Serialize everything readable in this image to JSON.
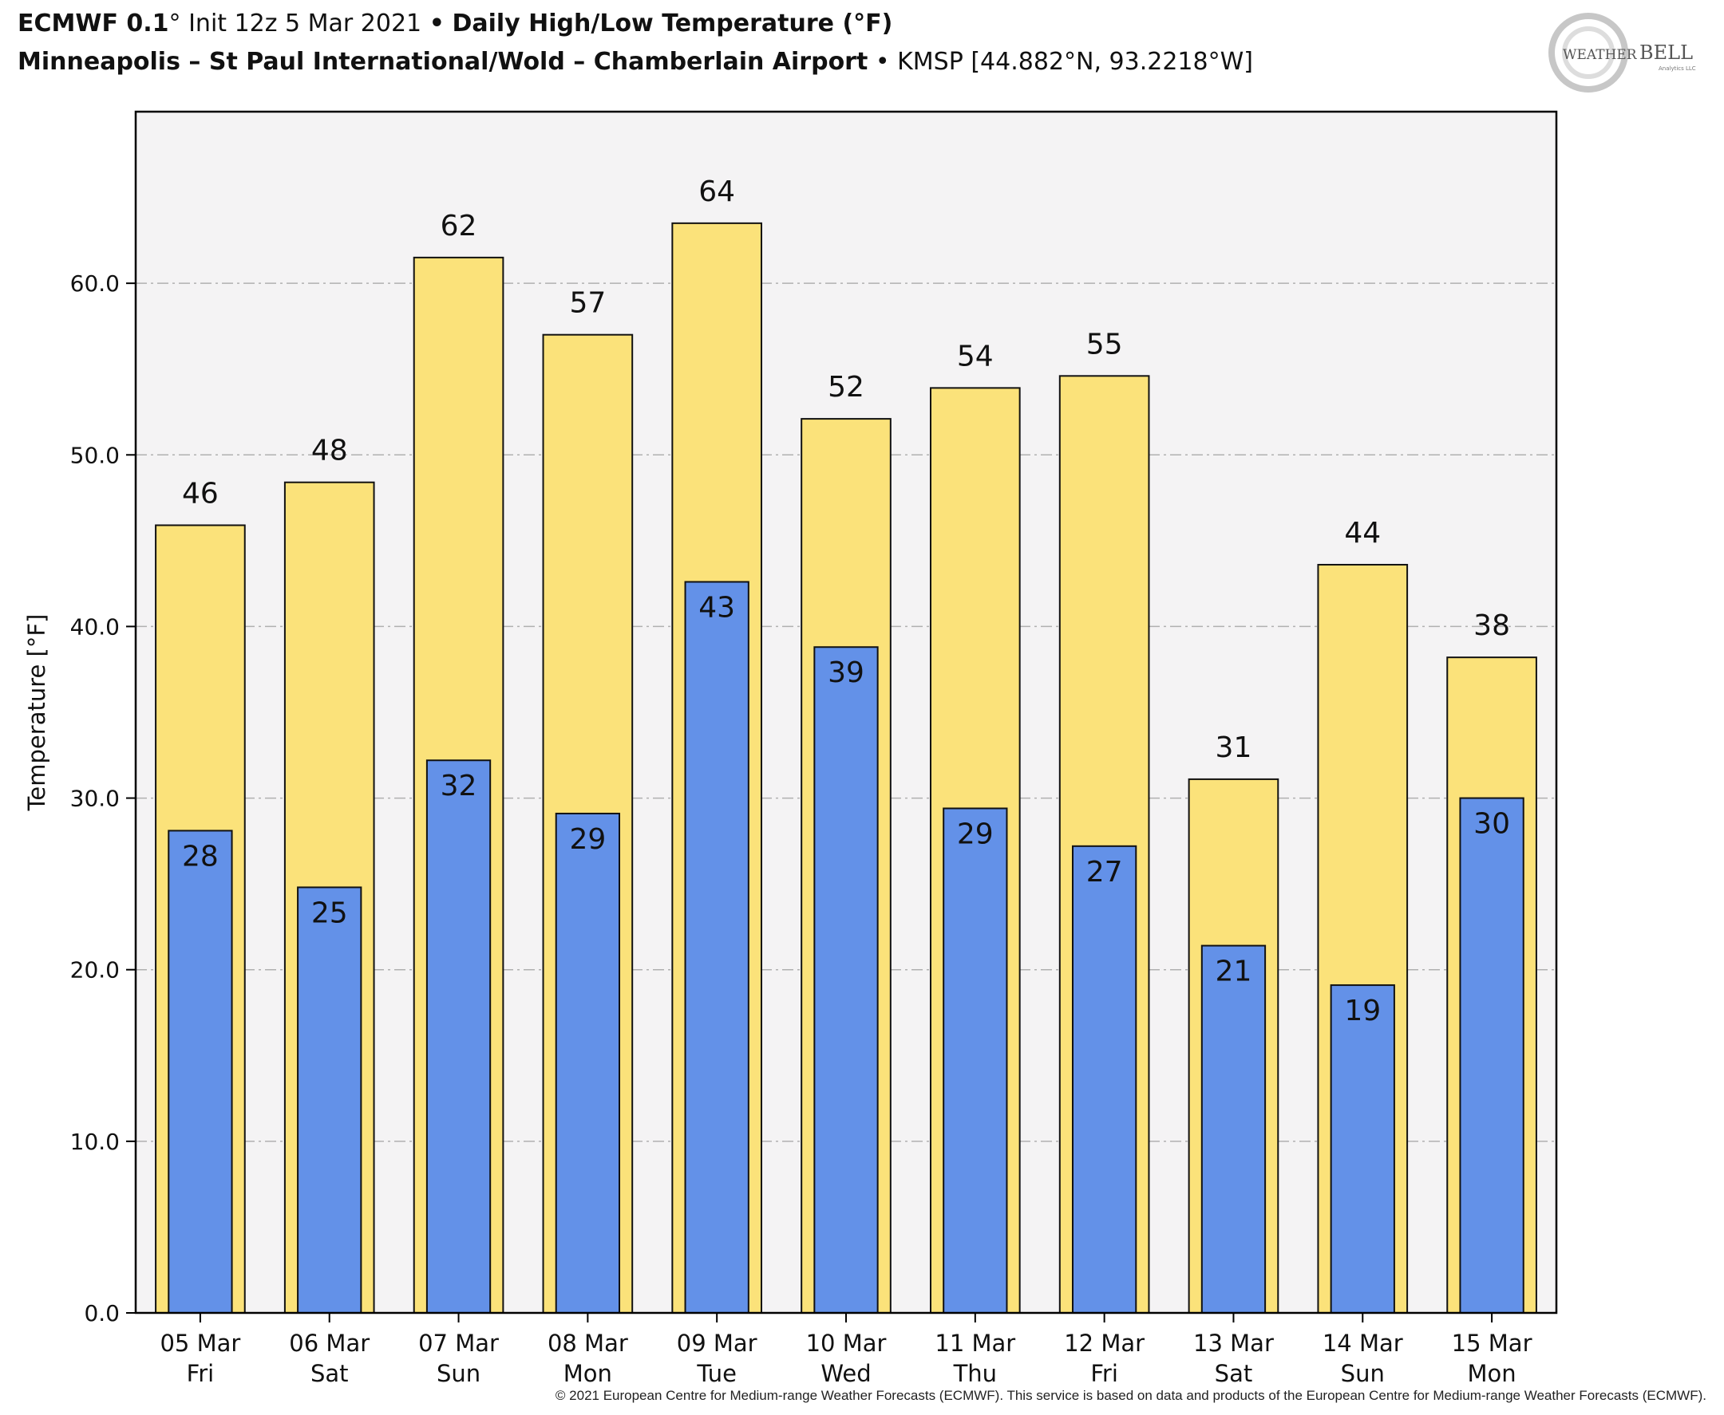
{
  "header": {
    "model": "ECMWF 0.1",
    "init": "° Init 12z 5 Mar 2021",
    "bullet": "•",
    "product": "Daily High/Low Temperature (°F)",
    "location": "Minneapolis – St Paul International/Wold – Chamberlain Airport",
    "station": "KMSP [44.882°N, 93.2218°W]"
  },
  "logo": {
    "line1": "WEATHER",
    "line2": "BELL",
    "sub": "Analytics LLC"
  },
  "footer": {
    "copyright": "© 2021 European Centre for Medium-range Weather Forecasts (ECMWF). This service is based on data and products of the European Centre for Medium-range Weather Forecasts (ECMWF)."
  },
  "colors": {
    "high": "#fbe27a",
    "low": "#6391e8",
    "plot_bg": "#f4f3f4",
    "grid": "#b0b0b0"
  },
  "chart_data": {
    "type": "bar",
    "ylabel": "Temperature [°F]",
    "xlabel": "",
    "ylim": [
      0,
      70
    ],
    "yticks": [
      "0.0",
      "10.0",
      "20.0",
      "30.0",
      "40.0",
      "50.0",
      "60.0"
    ],
    "grid": true,
    "categories": [
      [
        "05 Mar",
        "Fri"
      ],
      [
        "06 Mar",
        "Sat"
      ],
      [
        "07 Mar",
        "Sun"
      ],
      [
        "08 Mar",
        "Mon"
      ],
      [
        "09 Mar",
        "Tue"
      ],
      [
        "10 Mar",
        "Wed"
      ],
      [
        "11 Mar",
        "Thu"
      ],
      [
        "12 Mar",
        "Fri"
      ],
      [
        "13 Mar",
        "Sat"
      ],
      [
        "14 Mar",
        "Sun"
      ],
      [
        "15 Mar",
        "Mon"
      ]
    ],
    "series": [
      {
        "key": "high",
        "values": [
          45.9,
          48.4,
          61.5,
          57.0,
          63.5,
          52.1,
          53.9,
          54.6,
          31.1,
          43.6,
          38.2
        ],
        "labels": [
          "46",
          "48",
          "62",
          "57",
          "64",
          "52",
          "54",
          "55",
          "31",
          "44",
          "38"
        ]
      },
      {
        "key": "low",
        "values": [
          28.1,
          24.8,
          32.2,
          29.1,
          42.6,
          38.8,
          29.4,
          27.2,
          21.4,
          19.1,
          30.0
        ],
        "labels": [
          "28",
          "25",
          "32",
          "29",
          "43",
          "39",
          "29",
          "27",
          "21",
          "19",
          "30"
        ]
      }
    ]
  }
}
